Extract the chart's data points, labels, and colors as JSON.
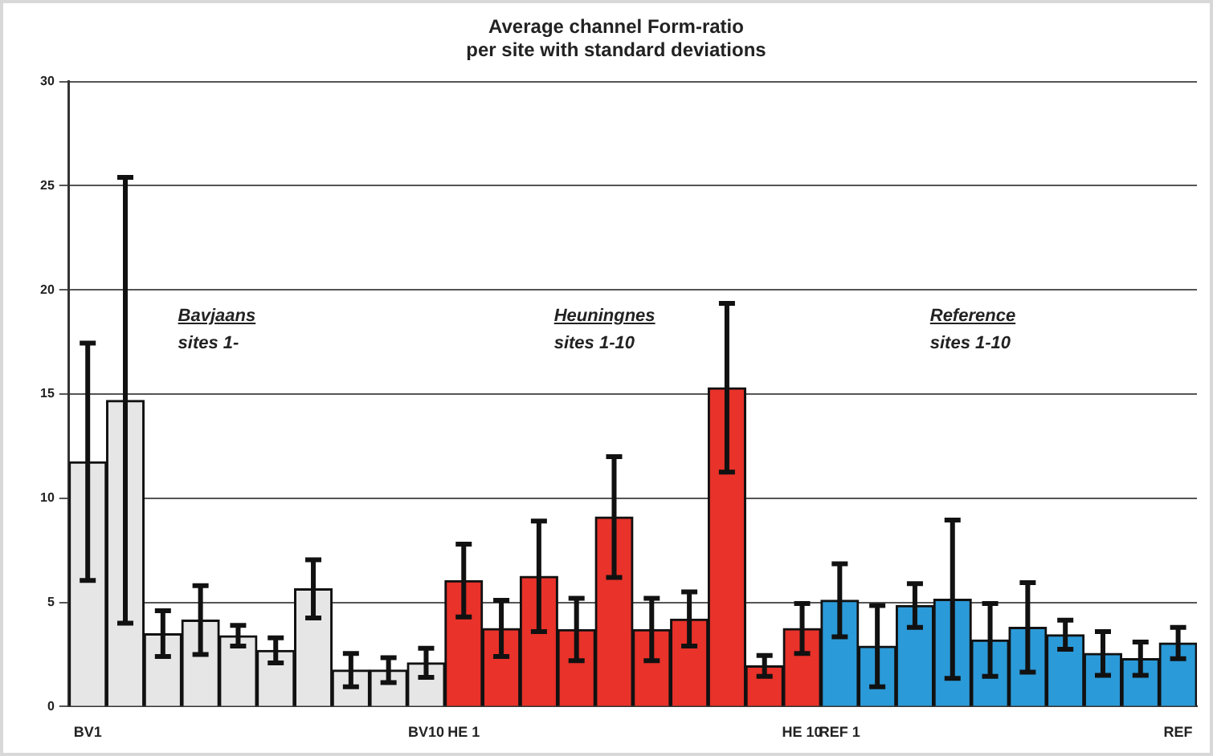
{
  "chart_data": {
    "type": "bar",
    "title": "Average channel Form-ratio\nper site with standard deviations",
    "categories": [
      "BV1",
      null,
      null,
      null,
      null,
      null,
      null,
      null,
      null,
      "BV10",
      "HE 1",
      null,
      null,
      null,
      null,
      null,
      null,
      null,
      null,
      "HE 10",
      "REF 1",
      null,
      null,
      null,
      null,
      null,
      null,
      null,
      null,
      "REF"
    ],
    "values": [
      11.75,
      14.7,
      3.5,
      4.15,
      3.4,
      2.7,
      5.65,
      1.75,
      1.75,
      2.1,
      6.05,
      3.75,
      6.25,
      3.7,
      9.1,
      3.7,
      4.2,
      15.3,
      1.95,
      3.75,
      5.1,
      2.9,
      4.85,
      5.15,
      3.2,
      3.8,
      3.45,
      2.55,
      2.3,
      3.05
    ],
    "errors": [
      5.7,
      10.7,
      1.1,
      1.65,
      0.5,
      0.6,
      1.4,
      0.8,
      0.6,
      0.7,
      1.75,
      1.35,
      2.65,
      1.5,
      2.9,
      1.5,
      1.3,
      4.05,
      0.5,
      1.2,
      1.75,
      1.95,
      1.05,
      3.8,
      1.75,
      2.15,
      0.7,
      1.05,
      0.8,
      0.75
    ],
    "colors": [
      "#e6e6e6",
      "#e6e6e6",
      "#e6e6e6",
      "#e6e6e6",
      "#e6e6e6",
      "#e6e6e6",
      "#e6e6e6",
      "#e6e6e6",
      "#e6e6e6",
      "#e6e6e6",
      "#e8322a",
      "#e8322a",
      "#e8322a",
      "#e8322a",
      "#e8322a",
      "#e8322a",
      "#e8322a",
      "#e8322a",
      "#e8322a",
      "#e8322a",
      "#2b9ad8",
      "#2b9ad8",
      "#2b9ad8",
      "#2b9ad8",
      "#2b9ad8",
      "#2b9ad8",
      "#2b9ad8",
      "#2b9ad8",
      "#2b9ad8",
      "#2b9ad8"
    ],
    "ylim": [
      0,
      30
    ],
    "yticks": [
      0,
      5,
      10,
      15,
      20,
      25,
      30
    ],
    "grid": "y",
    "annotations": [
      "Bavjaans\nsites 1-",
      "Heuningnes\nsites 1-10",
      "Reference\nsites 1-10"
    ]
  }
}
